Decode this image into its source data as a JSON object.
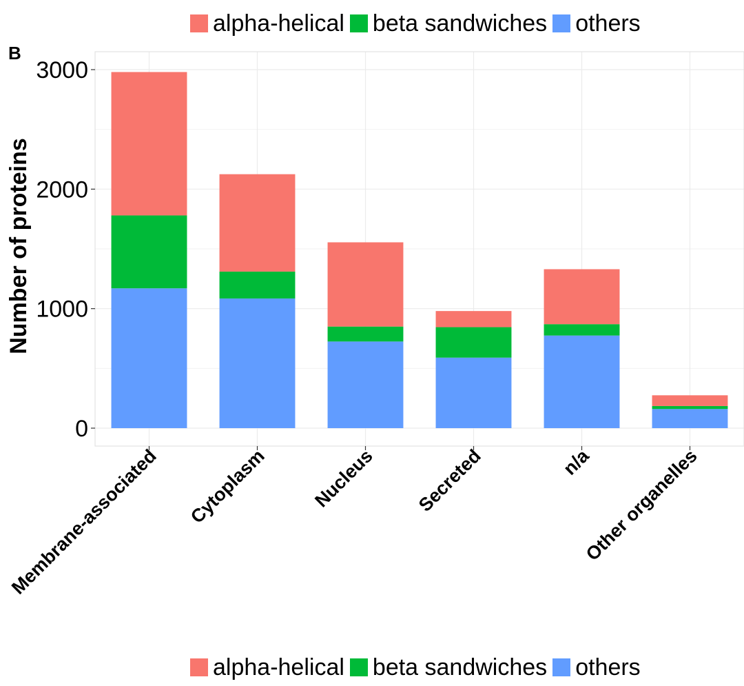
{
  "panel_label": "B",
  "colors": {
    "alpha_helical": "#F8766D",
    "beta_sandwiches": "#00BA38",
    "others": "#619CFF",
    "grid": "#EBEBEB",
    "axis": "#333333"
  },
  "legend": [
    {
      "label": "alpha-helical",
      "color": "#F8766D"
    },
    {
      "label": "beta sandwiches",
      "color": "#00BA38"
    },
    {
      "label": "others",
      "color": "#619CFF"
    }
  ],
  "chart_data": {
    "type": "bar",
    "stacked": true,
    "title": "",
    "xlabel": "",
    "ylabel": "Number of proteins",
    "categories": [
      "Membrane-associated",
      "Cytoplasm",
      "Nucleus",
      "Secreted",
      "n/a",
      "Other organelles"
    ],
    "series": [
      {
        "name": "others",
        "color": "#619CFF",
        "values": [
          1170,
          1085,
          725,
          590,
          775,
          160
        ]
      },
      {
        "name": "beta sandwiches",
        "color": "#00BA38",
        "values": [
          610,
          225,
          125,
          255,
          95,
          25
        ]
      },
      {
        "name": "alpha-helical",
        "color": "#F8766D",
        "values": [
          1200,
          815,
          705,
          135,
          460,
          90
        ]
      }
    ],
    "ylim": [
      -150,
      3150
    ],
    "yticks": [
      0,
      1000,
      2000,
      3000
    ],
    "ytick_labels": [
      "0",
      "1000",
      "2000",
      "3000"
    ],
    "grid": true,
    "legend_position": "top and bottom"
  }
}
